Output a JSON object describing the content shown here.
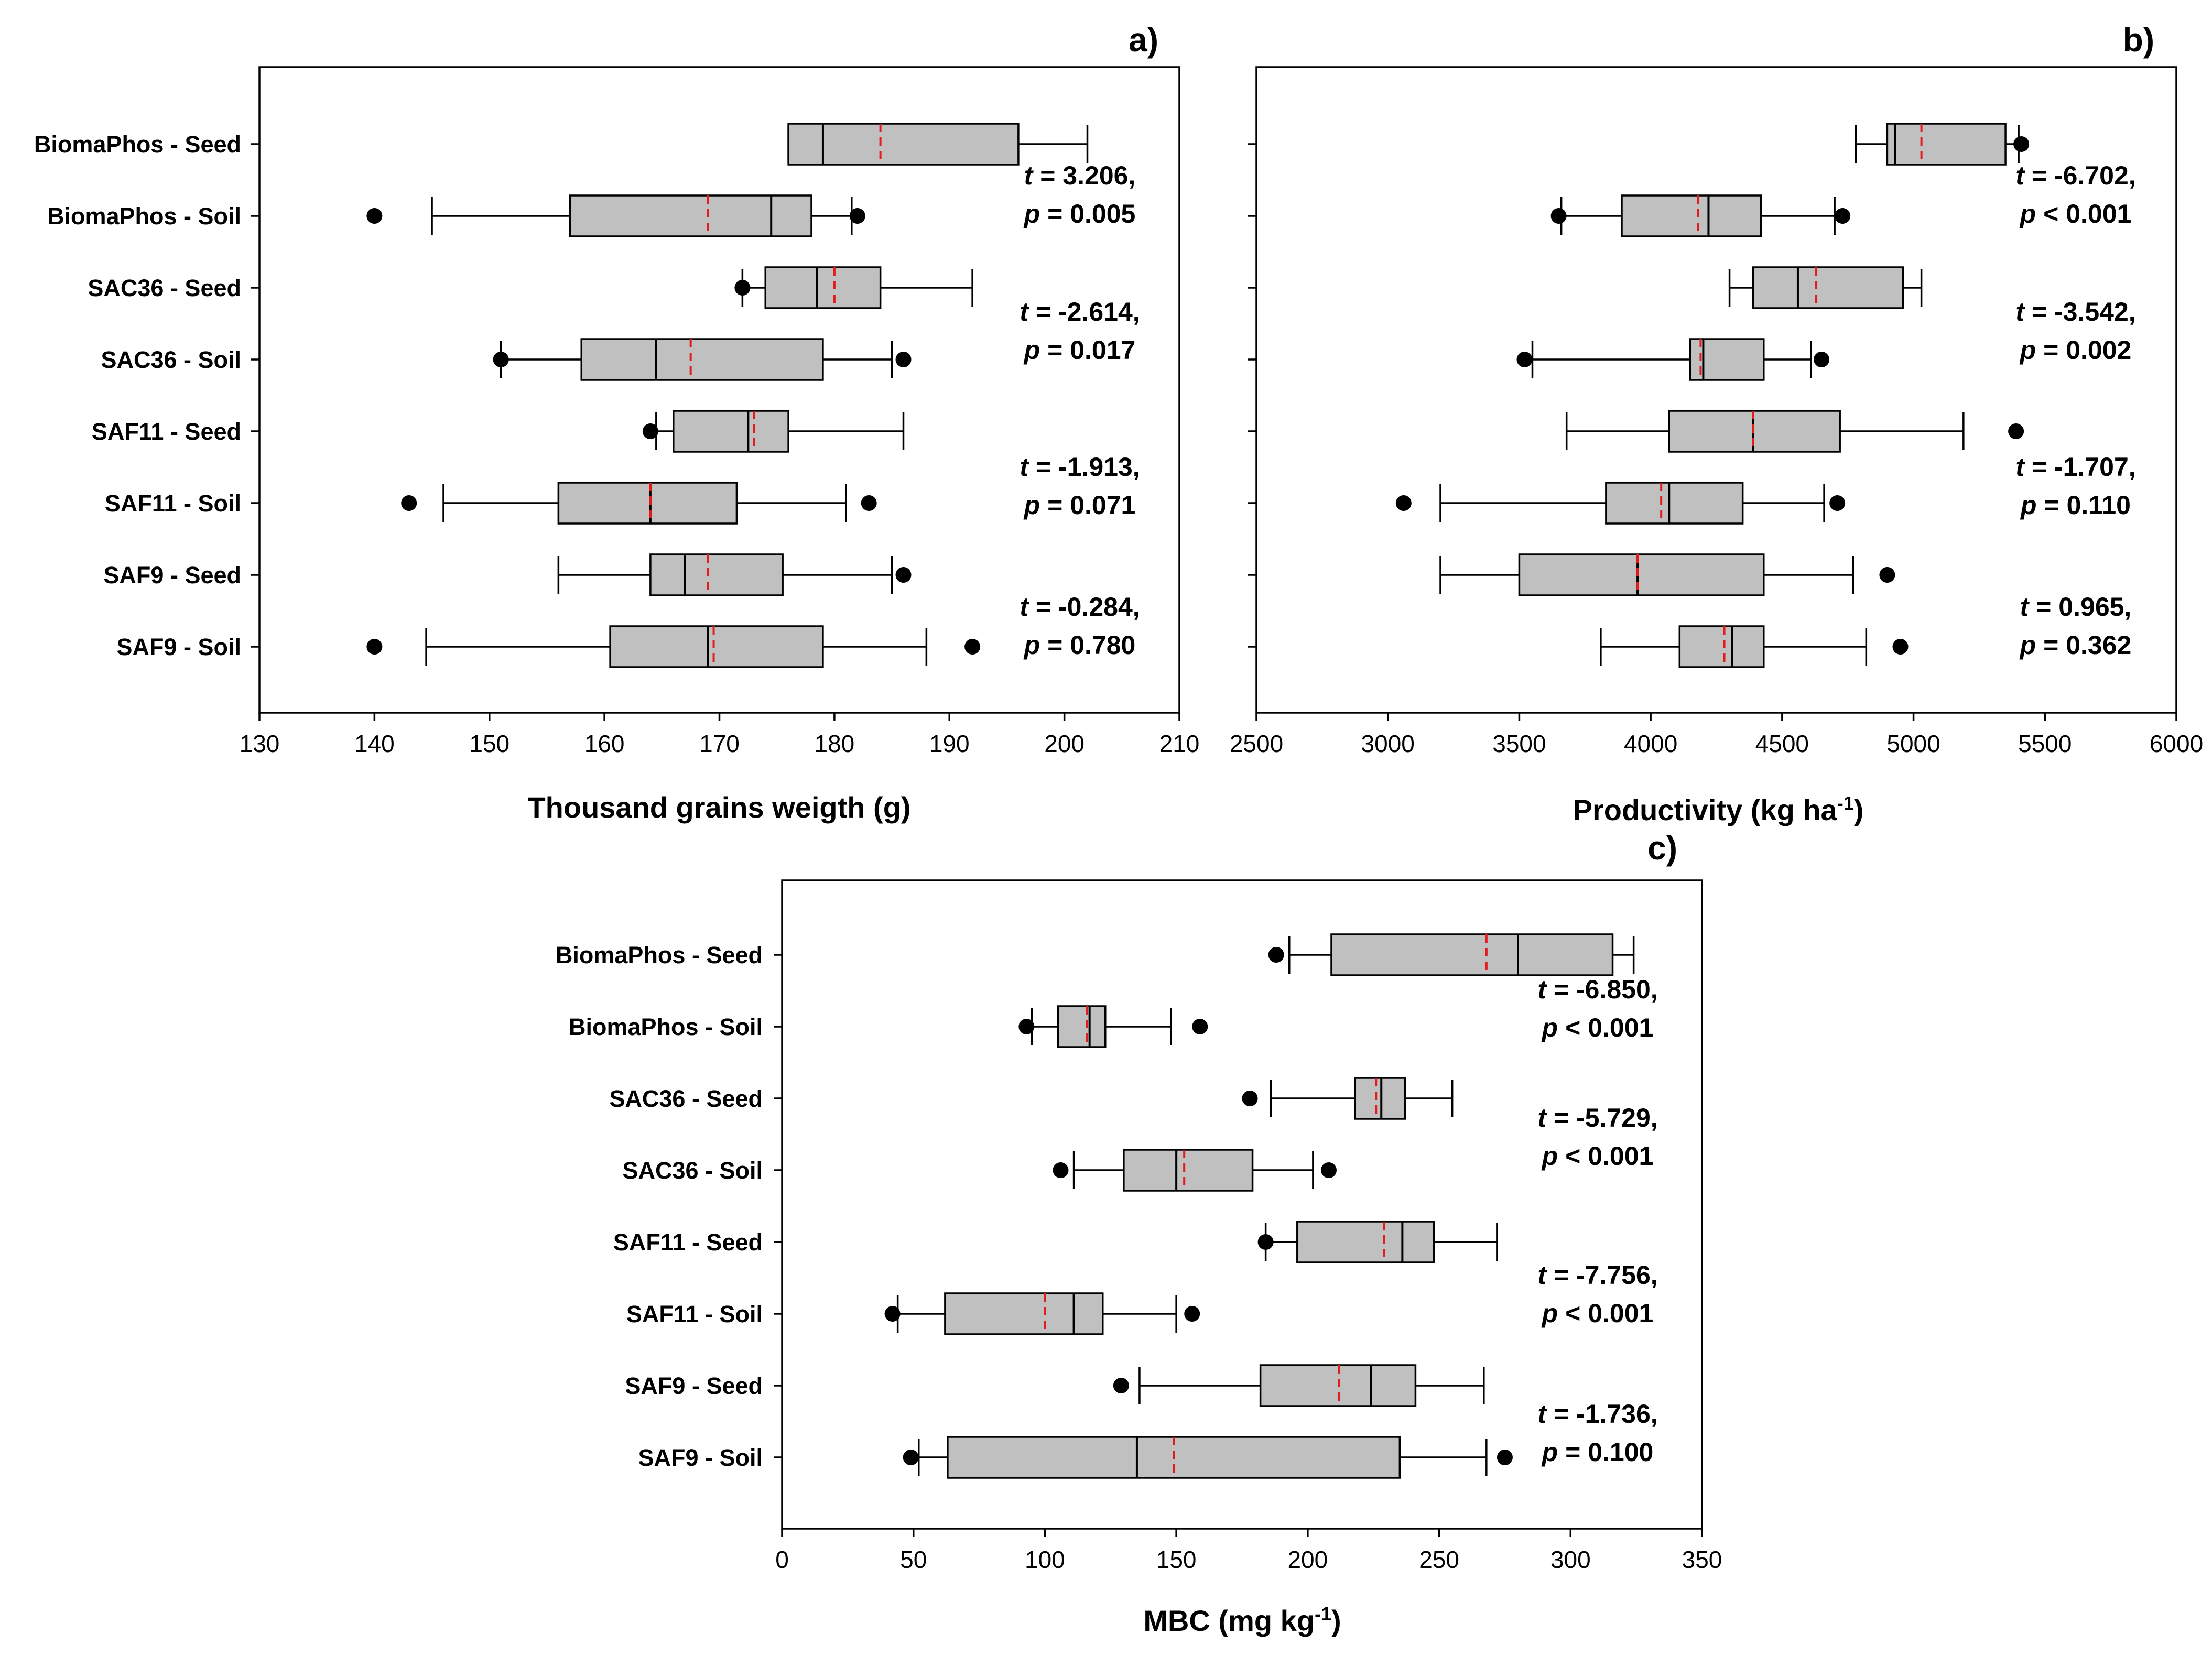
{
  "chart_data": [
    {
      "type": "boxplot",
      "panel_label": "a)",
      "xlabel": "Thousand grains weigth (g)",
      "xlim": [
        130,
        210
      ],
      "xticks": [
        130,
        140,
        150,
        160,
        170,
        180,
        190,
        200,
        210
      ],
      "categories": [
        "BiomaPhos - Seed",
        "BiomaPhos - Soil",
        "SAC36 - Seed",
        "SAC36 - Soil",
        "SAF11 - Seed",
        "SAF11 - Soil",
        "SAF9 - Seed",
        "SAF9 - Soil"
      ],
      "boxes": [
        {
          "whislo": 176,
          "q1": 176,
          "med": 179,
          "mean": 184,
          "q3": 196,
          "whishi": 202,
          "fliers": []
        },
        {
          "whislo": 145,
          "q1": 157,
          "med": 174.5,
          "mean": 169,
          "q3": 178,
          "whishi": 181.5,
          "fliers": [
            140,
            182
          ]
        },
        {
          "whislo": 172,
          "q1": 174,
          "med": 178.5,
          "mean": 180,
          "q3": 184,
          "whishi": 192,
          "fliers": [
            172
          ]
        },
        {
          "whislo": 151,
          "q1": 158,
          "med": 164.5,
          "mean": 167.5,
          "q3": 179,
          "whishi": 185,
          "fliers": [
            151,
            186
          ]
        },
        {
          "whislo": 164.5,
          "q1": 166,
          "med": 172.5,
          "mean": 173,
          "q3": 176,
          "whishi": 186,
          "fliers": [
            164
          ]
        },
        {
          "whislo": 146,
          "q1": 156,
          "med": 164,
          "mean": 164,
          "q3": 171.5,
          "whishi": 181,
          "fliers": [
            143,
            183
          ]
        },
        {
          "whislo": 156,
          "q1": 164,
          "med": 167,
          "mean": 169,
          "q3": 175.5,
          "whishi": 185,
          "fliers": [
            186
          ]
        },
        {
          "whislo": 144.5,
          "q1": 160.5,
          "med": 169,
          "mean": 169.5,
          "q3": 179,
          "whishi": 188,
          "fliers": [
            140,
            192
          ]
        }
      ],
      "annotations": [
        {
          "t": "3.206",
          "p": "= 0.005"
        },
        {
          "t": "-2.614",
          "p": "= 0.017"
        },
        {
          "t": "-1.913",
          "p": "= 0.071"
        },
        {
          "t": "-0.284",
          "p": "= 0.780"
        }
      ]
    },
    {
      "type": "boxplot",
      "panel_label": "b)",
      "xlabel": "Productivity (kg ha",
      "xlabel_sup": "-1",
      "xlabel_end": ")",
      "xlim": [
        2500,
        6000
      ],
      "xticks": [
        2500,
        3000,
        3500,
        4000,
        4500,
        5000,
        5500,
        6000
      ],
      "categories": [
        "BiomaPhos - Seed",
        "BiomaPhos - Soil",
        "SAC36 - Seed",
        "SAC36 - Soil",
        "SAF11 - Seed",
        "SAF11 - Soil",
        "SAF9 - Seed",
        "SAF9 - Soil"
      ],
      "boxes": [
        {
          "whislo": 4780,
          "q1": 4900,
          "med": 4930,
          "mean": 5030,
          "q3": 5350,
          "whishi": 5400,
          "fliers": [
            5410
          ]
        },
        {
          "whislo": 3660,
          "q1": 3890,
          "med": 4220,
          "mean": 4180,
          "q3": 4420,
          "whishi": 4700,
          "fliers": [
            3650,
            4730
          ]
        },
        {
          "whislo": 4300,
          "q1": 4390,
          "med": 4560,
          "mean": 4630,
          "q3": 4960,
          "whishi": 5030,
          "fliers": []
        },
        {
          "whislo": 3550,
          "q1": 4150,
          "med": 4200,
          "mean": 4190,
          "q3": 4430,
          "whishi": 4610,
          "fliers": [
            3520,
            4650
          ]
        },
        {
          "whislo": 3680,
          "q1": 4070,
          "med": 4390,
          "mean": 4390,
          "q3": 4720,
          "whishi": 5190,
          "fliers": [
            5390
          ]
        },
        {
          "whislo": 3200,
          "q1": 3830,
          "med": 4070,
          "mean": 4040,
          "q3": 4350,
          "whishi": 4660,
          "fliers": [
            3060,
            4710
          ]
        },
        {
          "whislo": 3200,
          "q1": 3500,
          "med": 3950,
          "mean": 3950,
          "q3": 4430,
          "whishi": 4770,
          "fliers": [
            4900
          ]
        },
        {
          "whislo": 3810,
          "q1": 4110,
          "med": 4310,
          "mean": 4280,
          "q3": 4430,
          "whishi": 4820,
          "fliers": [
            4950
          ]
        }
      ],
      "annotations": [
        {
          "t": "-6.702",
          "p": "< 0.001"
        },
        {
          "t": "-3.542",
          "p": "= 0.002"
        },
        {
          "t": "-1.707",
          "p": "= 0.110"
        },
        {
          "t": "0.965",
          "p": "= 0.362"
        }
      ]
    },
    {
      "type": "boxplot",
      "panel_label": "c)",
      "xlabel": "MBC (mg kg",
      "xlabel_sup": "-1",
      "xlabel_end": ")",
      "xlim": [
        0,
        350
      ],
      "xticks": [
        0,
        50,
        100,
        150,
        200,
        250,
        300,
        350
      ],
      "categories": [
        "BiomaPhos - Seed",
        "BiomaPhos - Soil",
        "SAC36 - Seed",
        "SAC36 - Soil",
        "SAF11 - Seed",
        "SAF11 - Soil",
        "SAF9 - Seed",
        "SAF9 - Soil"
      ],
      "boxes": [
        {
          "whislo": 193,
          "q1": 209,
          "med": 280,
          "mean": 268,
          "q3": 316,
          "whishi": 324,
          "fliers": [
            188
          ]
        },
        {
          "whislo": 95,
          "q1": 105,
          "med": 117,
          "mean": 116,
          "q3": 123,
          "whishi": 148,
          "fliers": [
            93,
            159
          ]
        },
        {
          "whislo": 186,
          "q1": 218,
          "med": 228,
          "mean": 226,
          "q3": 237,
          "whishi": 255,
          "fliers": [
            178
          ]
        },
        {
          "whislo": 111,
          "q1": 130,
          "med": 150,
          "mean": 153,
          "q3": 179,
          "whishi": 202,
          "fliers": [
            106,
            208
          ]
        },
        {
          "whislo": 184,
          "q1": 196,
          "med": 236,
          "mean": 229,
          "q3": 248,
          "whishi": 272,
          "fliers": [
            184
          ]
        },
        {
          "whislo": 44,
          "q1": 62,
          "med": 111,
          "mean": 100,
          "q3": 122,
          "whishi": 150,
          "fliers": [
            42,
            156
          ]
        },
        {
          "whislo": 136,
          "q1": 182,
          "med": 224,
          "mean": 212,
          "q3": 241,
          "whishi": 267,
          "fliers": [
            129
          ]
        },
        {
          "whislo": 52,
          "q1": 63,
          "med": 135,
          "mean": 149,
          "q3": 235,
          "whishi": 268,
          "fliers": [
            49,
            275
          ]
        }
      ],
      "annotations": [
        {
          "t": "-6.850",
          "p": "< 0.001"
        },
        {
          "t": "-5.729",
          "p": "< 0.001"
        },
        {
          "t": "-7.756",
          "p": "< 0.001"
        },
        {
          "t": "-1.736",
          "p": "= 0.100"
        }
      ]
    }
  ]
}
